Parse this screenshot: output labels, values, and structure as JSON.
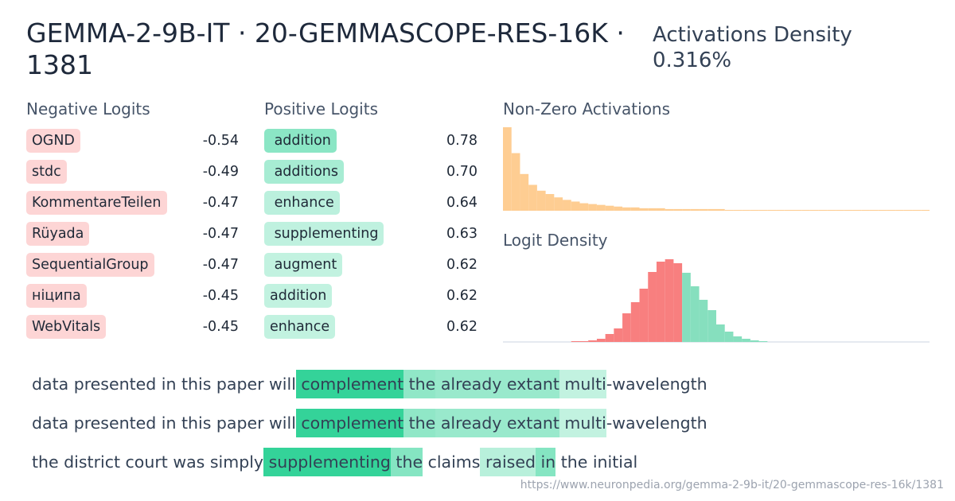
{
  "header": {
    "title": "GEMMA-2-9B-IT · 20-GEMMASCOPE-RES-16K · 1381",
    "density_label": "Activations Density",
    "density_value": "0.316%"
  },
  "negative_logits": {
    "title": "Negative Logits",
    "rows": [
      [
        "OGND",
        "-0.54"
      ],
      [
        "stdc",
        "-0.49"
      ],
      [
        "KommentareTeilen",
        "-0.47"
      ],
      [
        "Rüyada",
        "-0.47"
      ],
      [
        "SequentialGroup",
        "-0.47"
      ],
      [
        "ніципа",
        "-0.45"
      ],
      [
        "WebVitals",
        "-0.45"
      ]
    ]
  },
  "positive_logits": {
    "title": "Positive Logits",
    "rows": [
      [
        " addition",
        "0.78"
      ],
      [
        " additions",
        "0.70"
      ],
      [
        " enhance",
        "0.64"
      ],
      [
        " supplementing",
        "0.63"
      ],
      [
        " augment",
        "0.62"
      ],
      [
        "addition",
        "0.62"
      ],
      [
        "enhance",
        "0.62"
      ]
    ]
  },
  "histograms": {
    "activations": {
      "title": "Non-Zero Activations",
      "color": "#fecd92",
      "values": [
        100,
        69,
        44,
        31,
        24,
        20,
        16,
        13,
        11,
        9,
        8,
        7,
        6,
        5,
        4,
        4,
        3,
        3,
        3,
        2,
        2,
        2,
        2,
        2,
        2,
        2,
        1,
        1,
        1,
        1,
        1,
        1,
        1,
        1,
        1,
        1,
        1,
        1,
        1,
        1,
        1,
        1,
        1,
        1,
        1,
        1,
        1,
        1,
        1,
        1
      ]
    },
    "logit_density": {
      "title": "Logit Density",
      "negative_color": "#f87f7f",
      "positive_color": "#86dfbe",
      "negative": [
        0,
        0,
        0,
        0,
        0,
        0,
        0,
        0,
        1,
        1,
        2,
        4,
        10,
        17,
        36,
        50,
        67,
        88,
        101,
        104,
        99,
        0,
        0,
        0,
        0,
        0,
        0,
        0,
        0,
        0,
        0,
        0,
        0,
        0,
        0,
        0,
        0,
        0,
        0,
        0,
        0,
        0,
        0,
        0,
        0,
        0,
        0,
        0,
        0,
        0
      ],
      "positive": [
        0,
        0,
        0,
        0,
        0,
        0,
        0,
        0,
        0,
        0,
        0,
        0,
        0,
        0,
        0,
        0,
        0,
        0,
        0,
        0,
        0,
        87,
        70,
        53,
        40,
        22,
        13,
        7,
        4,
        2,
        1,
        0,
        0,
        0,
        0,
        0,
        0,
        0,
        0,
        0,
        0,
        0,
        0,
        0,
        0,
        0,
        0,
        0,
        0,
        0
      ]
    }
  },
  "examples": [
    {
      "tokens": [
        {
          "text": "data presented in this paper will",
          "act": 0
        },
        {
          "text": " complement",
          "act": 1
        },
        {
          "text": " the",
          "act": 0.55
        },
        {
          "text": " already",
          "act": 0.5
        },
        {
          "text": " extant",
          "act": 0.5
        },
        {
          "text": " multi",
          "act": 0.3
        },
        {
          "text": "-wavelength",
          "act": 0
        }
      ]
    },
    {
      "tokens": [
        {
          "text": "data presented in this paper will",
          "act": 0
        },
        {
          "text": " complement",
          "act": 1
        },
        {
          "text": " the",
          "act": 0.55
        },
        {
          "text": " already",
          "act": 0.5
        },
        {
          "text": " extant",
          "act": 0.5
        },
        {
          "text": " multi",
          "act": 0.3
        },
        {
          "text": "-wavelength",
          "act": 0
        }
      ]
    },
    {
      "tokens": [
        {
          "text": "the district court was simply",
          "act": 0
        },
        {
          "text": " supplementing",
          "act": 1
        },
        {
          "text": " the",
          "act": 0.6
        },
        {
          "text": " claims",
          "act": 0
        },
        {
          "text": " raised",
          "act": 0.35
        },
        {
          "text": " in",
          "act": 0.6
        },
        {
          "text": " the initial",
          "act": 0
        }
      ]
    }
  ],
  "footer": {
    "url": "https://www.neuronpedia.org/gemma-2-9b-it/20-gemmascope-res-16k/1381"
  }
}
